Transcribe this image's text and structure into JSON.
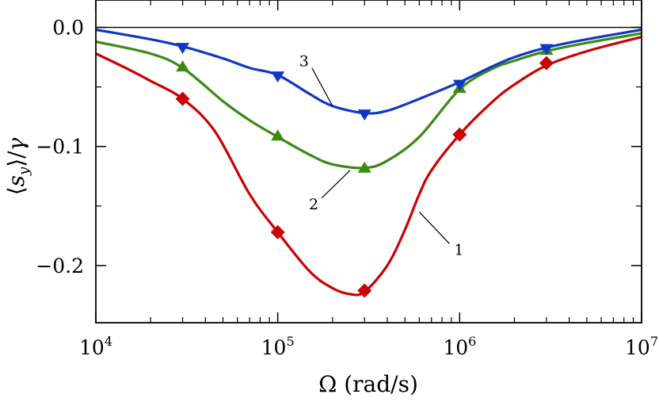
{
  "chart_data": {
    "type": "line",
    "title": "",
    "xlabel": "Ω (rad/s)",
    "ylabel": "⟨sy⟩/γ",
    "xscale": "log",
    "xlim": [
      10000,
      10000000
    ],
    "ylim": [
      -0.248,
      0.023
    ],
    "x_ticks": [
      {
        "value": 10000,
        "base": "10",
        "exp": "4"
      },
      {
        "value": 100000,
        "base": "10",
        "exp": "5"
      },
      {
        "value": 1000000,
        "base": "10",
        "exp": "6"
      },
      {
        "value": 10000000,
        "base": "10",
        "exp": "7"
      }
    ],
    "y_ticks": [
      {
        "value": 0.0,
        "label": "0.0"
      },
      {
        "value": -0.1,
        "label": "−0.1"
      },
      {
        "value": -0.2,
        "label": "−0.2"
      }
    ],
    "reference_line": 0.0,
    "series": [
      {
        "name": "1",
        "label": "1",
        "color": "#cc0000",
        "marker": "diamond",
        "curve_x": [
          10000,
          15000,
          20000,
          30000,
          45000,
          70000,
          100000,
          150000,
          200000,
          250000,
          300000,
          400000,
          500000,
          600000,
          700000,
          1000000,
          1500000,
          2000000,
          3000000,
          5000000,
          10000000
        ],
        "curve_y": [
          -0.022,
          -0.035,
          -0.045,
          -0.06,
          -0.087,
          -0.14,
          -0.172,
          -0.205,
          -0.219,
          -0.224,
          -0.222,
          -0.2,
          -0.17,
          -0.14,
          -0.12,
          -0.09,
          -0.063,
          -0.048,
          -0.032,
          -0.02,
          -0.008
        ],
        "marker_x": [
          30000,
          100000,
          300000,
          1000000,
          3000000
        ],
        "marker_y": [
          -0.06,
          -0.172,
          -0.221,
          -0.09,
          -0.03
        ]
      },
      {
        "name": "2",
        "label": "2",
        "color": "#3b8a12",
        "marker": "triangle-up",
        "curve_x": [
          10000,
          20000,
          30000,
          50000,
          70000,
          100000,
          150000,
          200000,
          300000,
          400000,
          600000,
          1000000,
          1500000,
          2000000,
          3000000,
          5000000,
          10000000
        ],
        "curve_y": [
          -0.012,
          -0.022,
          -0.034,
          -0.062,
          -0.078,
          -0.092,
          -0.107,
          -0.115,
          -0.118,
          -0.112,
          -0.092,
          -0.052,
          -0.035,
          -0.028,
          -0.02,
          -0.013,
          -0.005
        ],
        "marker_x": [
          30000,
          100000,
          300000,
          1000000,
          3000000
        ],
        "marker_y": [
          -0.033,
          -0.091,
          -0.118,
          -0.051,
          -0.019
        ]
      },
      {
        "name": "3",
        "label": "3",
        "color": "#1037c4",
        "marker": "triangle-down",
        "curve_x": [
          10000,
          20000,
          30000,
          50000,
          70000,
          100000,
          150000,
          200000,
          300000,
          400000,
          600000,
          1000000,
          1500000,
          2000000,
          3000000,
          5000000,
          10000000
        ],
        "curve_y": [
          -0.002,
          -0.01,
          -0.016,
          -0.026,
          -0.034,
          -0.04,
          -0.056,
          -0.066,
          -0.072,
          -0.07,
          -0.06,
          -0.046,
          -0.033,
          -0.025,
          -0.017,
          -0.01,
          -0.002
        ],
        "marker_x": [
          30000,
          100000,
          300000,
          1000000,
          3000000
        ],
        "marker_y": [
          -0.017,
          -0.041,
          -0.073,
          -0.048,
          -0.018
        ]
      }
    ],
    "annotations": [
      {
        "text": "1",
        "series": "1",
        "anchor_x": 600000,
        "anchor_y": -0.155
      },
      {
        "text": "2",
        "series": "2",
        "anchor_x": 250000,
        "anchor_y": -0.12
      },
      {
        "text": "3",
        "series": "3",
        "anchor_x": 200000,
        "anchor_y": -0.066
      }
    ]
  }
}
